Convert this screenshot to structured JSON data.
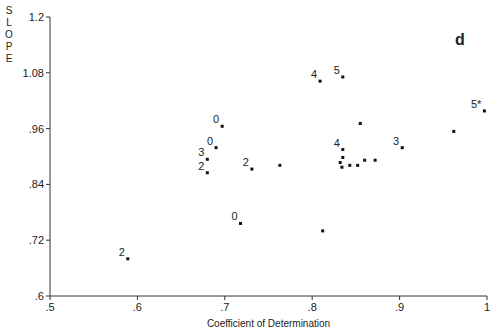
{
  "chart_data": {
    "type": "scatter",
    "annotation": "d",
    "x_label": "Coefficient of Determination",
    "y_label": "SLOPE",
    "x": [
      0.589,
      0.697,
      0.69,
      0.68,
      0.68,
      0.731,
      0.718,
      0.763,
      0.812,
      0.809,
      0.835,
      0.835,
      0.835,
      0.832,
      0.834,
      0.843,
      0.852,
      0.86,
      0.872,
      0.855,
      0.903,
      0.962,
      0.997
    ],
    "values": [
      0.68,
      0.965,
      0.919,
      0.894,
      0.865,
      0.873,
      0.756,
      0.881,
      0.74,
      1.062,
      1.071,
      0.915,
      0.898,
      0.887,
      0.877,
      0.881,
      0.881,
      0.892,
      0.892,
      0.971,
      0.919,
      0.954,
      0.998
    ],
    "labels": [
      "2",
      "0",
      "0",
      "3",
      "2",
      "2",
      "0",
      null,
      null,
      "4",
      "5",
      "4",
      null,
      null,
      null,
      null,
      null,
      null,
      null,
      null,
      "3",
      null,
      "5*"
    ],
    "color": "#111111",
    "marker": "square",
    "xlim": [
      0.5,
      1
    ],
    "xticks": [
      {
        "value": 0.5,
        "label": ".5"
      },
      {
        "value": 0.6,
        "label": ".6"
      },
      {
        "value": 0.7,
        "label": ".7"
      },
      {
        "value": 0.8,
        "label": ".8"
      },
      {
        "value": 0.9,
        "label": ".9"
      },
      1
    ],
    "ylim": [
      0.6,
      1.2
    ],
    "yticks": [
      {
        "value": 0.6,
        "label": ".6"
      },
      {
        "value": 0.72,
        "label": ".72"
      },
      {
        "value": 0.84,
        "label": ".84"
      },
      {
        "value": 0.96,
        "label": ".96"
      },
      1.08,
      1.2
    ],
    "grid": false
  }
}
